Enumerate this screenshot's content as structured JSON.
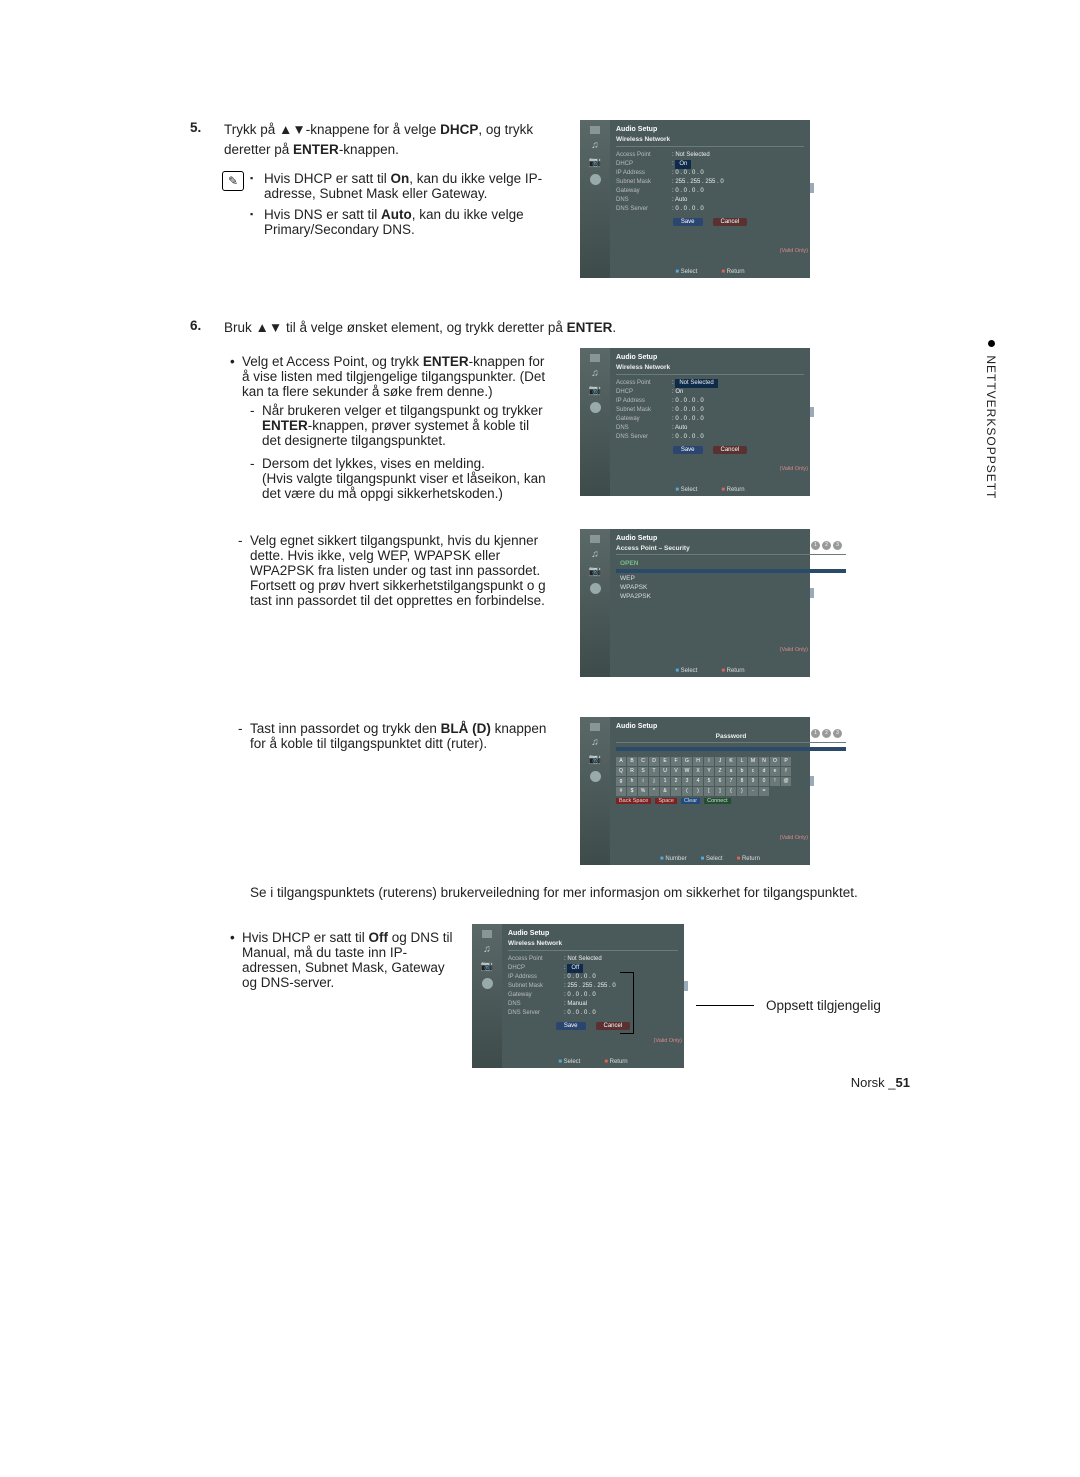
{
  "side_tab": "NETTVERKSOPPSETT",
  "step5": {
    "num": "5.",
    "text_pre": "Trykk på ",
    "arrows": "▲▼",
    "text_mid": "-knappene for å velge ",
    "dhcp": "DHCP",
    "text_post": ", og trykk deretter på ",
    "enter": "ENTER",
    "text_end": "-knappen.",
    "note1a": "Hvis DHCP er satt til ",
    "note1b": "On",
    "note1c": ", kan du ikke velge IP-adresse, Subnet Mask eller Gateway.",
    "note2a": "Hvis DNS er satt til ",
    "note2b": "Auto",
    "note2c": ", kan du ikke velge Primary/Secondary DNS."
  },
  "step6": {
    "num": "6.",
    "text_pre": "Bruk ",
    "arrows": "▲▼",
    "text_mid": " til å velge ønsket element, og trykk deretter på ",
    "enter": "ENTER",
    "text_end": ".",
    "b1a": "Velg et Access Point, og trykk ",
    "b1b": "ENTER",
    "b1c": "-knappen for å vise listen med tilgjengelige tilgangspunkter. (Det kan ta flere sekunder å søke frem denne.)",
    "d1a": "Når brukeren velger et tilgangspunkt og trykker ",
    "d1b": "ENTER",
    "d1c": "-knappen, prøver systemet å koble til det designerte tilgangspunktet.",
    "d2": "Dersom det lykkes, vises en melding.\n(Hvis valgte tilgangspunkt viser et låseikon, kan det være du må oppgi sikkerhetskoden.)",
    "d3": "Velg egnet sikkert tilgangspunkt, hvis du kjenner dette. Hvis ikke, velg WEP, WPAPSK eller WPA2PSK fra listen under og tast inn passordet. Fortsett og prøv hvert sikkerhetstilgangspunkt o g tast inn passordet til det opprettes en forbindelse.",
    "d4a": "Tast inn passordet og trykk den ",
    "d4b": "BLÅ (D)",
    "d4c": " knappen for å koble til tilgangspunktet ditt (ruter).",
    "tail": "Se i tilgangspunktets (ruterens) brukerveiledning for mer informasjon om sikkerhet for tilgangspunktet.",
    "b2a": "Hvis DHCP er satt til ",
    "b2b": "Off",
    "b2c": " og DNS til Manual, må du taste inn IP-adressen, Subnet Mask, Gateway og DNS-server."
  },
  "callout": "Oppsett tilgjengelig",
  "page": {
    "lang": "Norsk",
    "num": "51"
  },
  "tv_common": {
    "menu": "Music",
    "audio_setup": "Audio Setup",
    "wireless": "Wireless Network",
    "select": "Select",
    "return": "Return",
    "valid": "(Valid Only)",
    "save": "Save",
    "cancel": "Cancel",
    "rows_labels": [
      "Access Point",
      "DHCP",
      "IP Address",
      "Subnet Mask",
      "Gateway",
      "DNS",
      "DNS Server"
    ]
  },
  "tv1_vals": [
    "Not Selected",
    "On",
    "0 . 0 . 0 . 0",
    "255 . 255 . 255 . 0",
    "0 . 0 . 0 . 0",
    "Auto",
    "0 . 0 . 0 . 0"
  ],
  "tv2_vals": [
    "Not Selected",
    "On",
    "0 . 0 . 0 . 0",
    "0 . 0 . 0 . 0",
    "0 . 0 . 0 . 0",
    "Auto",
    "0 . 0 . 0 . 0"
  ],
  "tv3": {
    "title": "Access Point – Security",
    "items": [
      "OPEN",
      "WEP",
      "WPAPSK",
      "WPA2PSK"
    ]
  },
  "tv4": {
    "title": "Password",
    "kb": "ABCDEFGHIJKLMNOPQRSTUVWXYZabcdefghij1234567890!@#$%^&*()[]{}-=",
    "tags": [
      "Back Space",
      "Space",
      "Clear",
      "Connect"
    ],
    "number": "Number"
  },
  "tv5_vals": [
    "Not Selected",
    "Off",
    "0 . 0 . 0 . 0",
    "255 . 255 . 255 . 0",
    "0 . 0 . 0 . 0",
    "Manual",
    "0 . 0 . 0 . 0"
  ]
}
